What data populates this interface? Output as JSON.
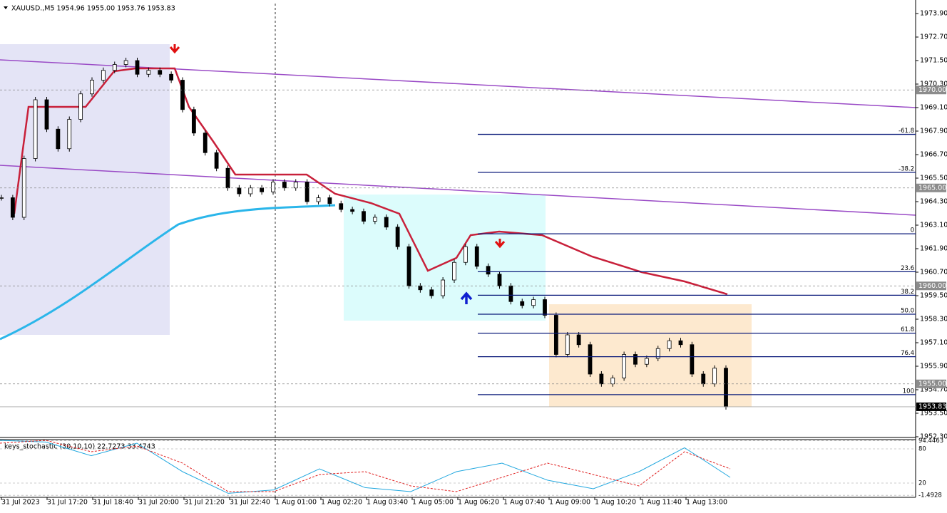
{
  "header": "XAUUSD.,M5  1954.96 1955.00 1953.76 1953.83",
  "price_axis": [
    {
      "value": 1973.9,
      "label": "1973.90"
    },
    {
      "value": 1972.7,
      "label": "1972.70"
    },
    {
      "value": 1971.5,
      "label": "1971.50"
    },
    {
      "value": 1970.3,
      "label": "1970.30"
    },
    {
      "value": 1969.1,
      "label": "1969.10"
    },
    {
      "value": 1967.9,
      "label": "1967.90"
    },
    {
      "value": 1966.7,
      "label": "1966.70"
    },
    {
      "value": 1965.5,
      "label": "1965.50"
    },
    {
      "value": 1964.3,
      "label": "1964.30"
    },
    {
      "value": 1963.1,
      "label": "1963.10"
    },
    {
      "value": 1961.9,
      "label": "1961.90"
    },
    {
      "value": 1960.7,
      "label": "1960.70"
    },
    {
      "value": 1959.5,
      "label": "1959.50"
    },
    {
      "value": 1958.3,
      "label": "1958.30"
    },
    {
      "value": 1957.1,
      "label": "1957.10"
    },
    {
      "value": 1955.9,
      "label": "1955.90"
    },
    {
      "value": 1954.7,
      "label": "1954.70"
    },
    {
      "value": 1953.5,
      "label": "1953.50"
    },
    {
      "value": 1952.3,
      "label": "1952.30"
    }
  ],
  "price_markers": [
    {
      "value": 1970,
      "label": "1970.00"
    },
    {
      "value": 1965,
      "label": "1965.00"
    },
    {
      "value": 1960,
      "label": "1960.00"
    },
    {
      "value": 1955,
      "label": "1955.00"
    }
  ],
  "last_price": {
    "value": 1953.83,
    "label": "1953.83"
  },
  "time_labels": [
    "31 Jul 2023",
    "31 Jul 17:20",
    "31 Jul 18:40",
    "31 Jul 20:00",
    "31 Jul 21:20",
    "31 Jul 22:40",
    "1 Aug 01:00",
    "1 Aug 02:20",
    "1 Aug 03:40",
    "1 Aug 05:00",
    "1 Aug 06:20",
    "1 Aug 07:40",
    "1 Aug 09:00",
    "1 Aug 10:20",
    "1 Aug 11:40",
    "1 Aug 13:00"
  ],
  "fib_range": [
    1962.66,
    1954.45
  ],
  "fib_levels": [
    -61.8,
    -38.2,
    0,
    23.6,
    38.2,
    {
      "value": 50,
      "label": "50.0"
    },
    61.8,
    76.4,
    100
  ],
  "close": [
    1964.5,
    1963.5,
    1966.5,
    1969.5,
    1968,
    1967,
    1968.5,
    1969.8,
    1970.5,
    1971,
    1971.3,
    1971.5,
    1970.8,
    1971,
    1970.8,
    1970.5,
    1969,
    1967.8,
    1966.8,
    1966,
    1965,
    1964.7,
    1965,
    1964.8,
    1965.3,
    1965,
    1965.3,
    1964.3,
    1964.5,
    1964.2,
    1963.9,
    1963.8,
    1963.3,
    1963.5,
    1963,
    1962,
    1960,
    1959.8,
    1959.5,
    1960.3,
    1961.2,
    1962,
    1961,
    1960.6,
    1960,
    1959.2,
    1959,
    1959.3,
    1958.5,
    1956.5,
    1957.5,
    1957,
    1955.5,
    1955,
    1955.3,
    1956.5,
    1956,
    1956.3,
    1956.8,
    1957.2,
    1957,
    1955.5,
    1955,
    1955.8,
    1953.83
  ],
  "stochastic": {
    "label": "keys_stochastic (30,10,10) 22.7273 33.4743",
    "ticks": [
      {
        "value": 94.4463,
        "label": "94.4463"
      },
      80,
      20,
      {
        "value": -1.4928,
        "label": "-1.4928"
      }
    ],
    "main": [
      95,
      92,
      68,
      90,
      40,
      2,
      8,
      45,
      12,
      5,
      40,
      55,
      25,
      10,
      40,
      82,
      30
    ],
    "signal": [
      90,
      95,
      75,
      85,
      55,
      5,
      5,
      35,
      40,
      15,
      5,
      30,
      55,
      35,
      15,
      75,
      45
    ]
  }
}
